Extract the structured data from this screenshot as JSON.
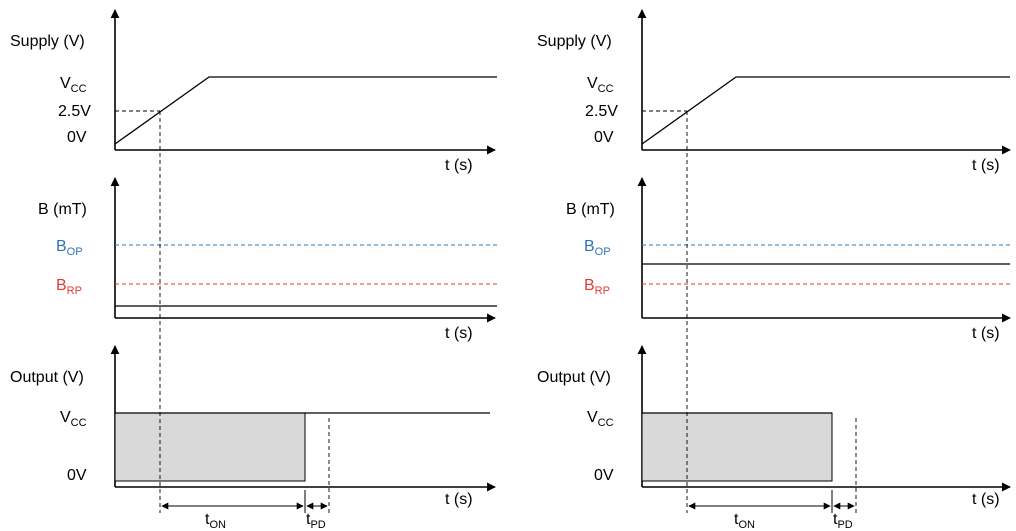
{
  "colors": {
    "line": "#000000",
    "bop": "#2e75b6",
    "brp": "#e53935",
    "fill": "#d9d9d9"
  },
  "diagrams": [
    {
      "supply_axis_label": "Supply (V)",
      "vcc_label": "V",
      "vcc_sub": "CC",
      "v25_label": "2.5V",
      "zero_label": "0V",
      "time_label": "t (s)",
      "b_axis_label": "B (mT)",
      "bop_label": "B",
      "bop_sub": "OP",
      "brp_label": "B",
      "brp_sub": "RP",
      "output_axis_label": "Output (V)",
      "out_vcc_label": "V",
      "out_vcc_sub": "CC",
      "out_zero_label": "0V",
      "ton_label": "t",
      "ton_sub": "ON",
      "tpd_label": "t",
      "tpd_sub": "PD",
      "field_level": "below B_RP"
    },
    {
      "supply_axis_label": "Supply (V)",
      "vcc_label": "V",
      "vcc_sub": "CC",
      "v25_label": "2.5V",
      "zero_label": "0V",
      "time_label": "t (s)",
      "b_axis_label": "B (mT)",
      "bop_label": "B",
      "bop_sub": "OP",
      "brp_label": "B",
      "brp_sub": "RP",
      "output_axis_label": "Output (V)",
      "out_vcc_label": "V",
      "out_vcc_sub": "CC",
      "out_zero_label": "0V",
      "ton_label": "t",
      "ton_sub": "ON",
      "tpd_label": "t",
      "tpd_sub": "PD",
      "field_level": "between B_RP and B_OP"
    }
  ]
}
